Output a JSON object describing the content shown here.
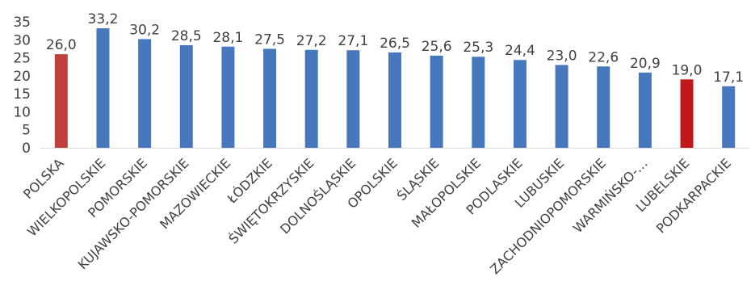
{
  "chart_data": {
    "type": "bar",
    "title": "",
    "xlabel": "",
    "ylabel": "",
    "ylim": [
      0,
      35
    ],
    "yticks": [
      0,
      5,
      10,
      15,
      20,
      25,
      30,
      35
    ],
    "grid": false,
    "legend": "none",
    "categories": [
      "POLSKA",
      "WIELKOPOLSKIE",
      "POMORSKIE",
      "KUJAWSKO-POMORSKIE",
      "MAZOWIECKIE",
      "ŁÓDZKIE",
      "ŚWIĘTOKRZYSKIE",
      "DOLNOŚLĄSKIE",
      "OPOLSKIE",
      "ŚLĄSKIE",
      "MAŁOPOLSKIE",
      "PODLASKIE",
      "LUBUSKIE",
      "ZACHODNIOPOMORSKIE",
      "WARMIŃSKO-…",
      "LUBELSKIE",
      "PODKARPACKIE"
    ],
    "values": [
      26.0,
      33.2,
      30.2,
      28.5,
      28.1,
      27.5,
      27.2,
      27.1,
      26.5,
      25.6,
      25.3,
      24.4,
      23.0,
      22.6,
      20.9,
      19.0,
      17.1
    ],
    "value_labels": [
      "26,0",
      "33,2",
      "30,2",
      "28,5",
      "28,1",
      "27,5",
      "27,2",
      "27,1",
      "26,5",
      "25,6",
      "25,3",
      "24,4",
      "23,0",
      "22,6",
      "20,9",
      "19,0",
      "17,1"
    ],
    "bar_colors": [
      "#c0403c",
      "#4778bd",
      "#4778bd",
      "#4778bd",
      "#4778bd",
      "#4778bd",
      "#4778bd",
      "#4778bd",
      "#4778bd",
      "#4778bd",
      "#4778bd",
      "#4778bd",
      "#4778bd",
      "#4778bd",
      "#4778bd",
      "#c0191b",
      "#4778bd"
    ],
    "colors": {
      "default": "#4778bd",
      "national": "#c0403c",
      "highlight": "#c0191b",
      "axis": "#d9d9d9",
      "text": "#404040"
    }
  }
}
